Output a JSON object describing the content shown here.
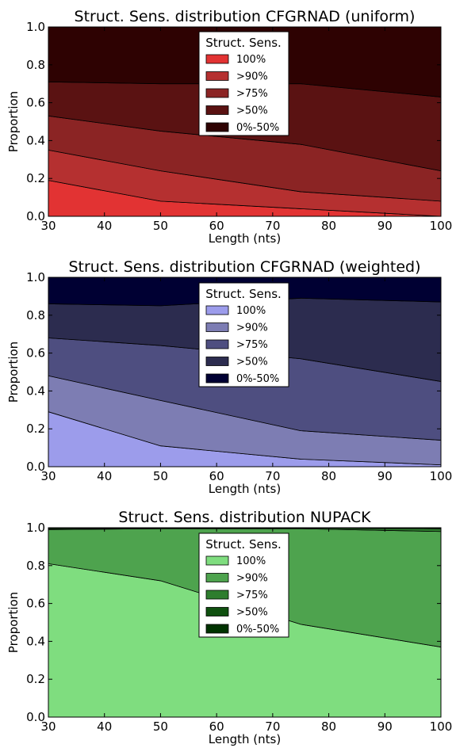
{
  "chart_data": [
    {
      "type": "area",
      "stacked": true,
      "title": "Struct. Sens. distribution CFGRNAD (uniform)",
      "xlabel": "Length (nts)",
      "ylabel": "Proportion",
      "xlim": [
        30,
        100
      ],
      "ylim": [
        0.0,
        1.0
      ],
      "x": [
        30,
        50,
        75,
        100
      ],
      "xticks": [
        "30",
        "40",
        "50",
        "60",
        "70",
        "80",
        "90",
        "100"
      ],
      "yticks": [
        "0.0",
        "0.2",
        "0.4",
        "0.6",
        "0.8",
        "1.0"
      ],
      "grid": false,
      "legend": {
        "title": "Struct. Sens.",
        "position": "top-center"
      },
      "series": [
        {
          "name": "100%",
          "values": [
            0.19,
            0.08,
            0.04,
            0.0
          ],
          "color": "#e23333"
        },
        {
          "name": ">90%",
          "values": [
            0.16,
            0.16,
            0.09,
            0.08
          ],
          "color": "#b53030"
        },
        {
          "name": ">75%",
          "values": [
            0.18,
            0.21,
            0.25,
            0.16
          ],
          "color": "#8b2424"
        },
        {
          "name": ">50%",
          "values": [
            0.18,
            0.25,
            0.32,
            0.39
          ],
          "color": "#5a1212"
        },
        {
          "name": "0%-50%",
          "values": [
            0.29,
            0.3,
            0.3,
            0.37
          ],
          "color": "#2e0202"
        }
      ]
    },
    {
      "type": "area",
      "stacked": true,
      "title": "Struct. Sens. distribution CFGRNAD (weighted)",
      "xlabel": "Length (nts)",
      "ylabel": "Proportion",
      "xlim": [
        30,
        100
      ],
      "ylim": [
        0.0,
        1.0
      ],
      "x": [
        30,
        50,
        75,
        100
      ],
      "xticks": [
        "30",
        "40",
        "50",
        "60",
        "70",
        "80",
        "90",
        "100"
      ],
      "yticks": [
        "0.0",
        "0.2",
        "0.4",
        "0.6",
        "0.8",
        "1.0"
      ],
      "grid": false,
      "legend": {
        "title": "Struct. Sens.",
        "position": "top-center"
      },
      "series": [
        {
          "name": "100%",
          "values": [
            0.29,
            0.11,
            0.04,
            0.01
          ],
          "color": "#9c9ceb"
        },
        {
          "name": ">90%",
          "values": [
            0.19,
            0.24,
            0.15,
            0.13
          ],
          "color": "#7d7db3"
        },
        {
          "name": ">75%",
          "values": [
            0.2,
            0.29,
            0.38,
            0.31
          ],
          "color": "#4e4e80"
        },
        {
          "name": ">50%",
          "values": [
            0.18,
            0.21,
            0.32,
            0.42
          ],
          "color": "#2c2c4f"
        },
        {
          "name": "0%-50%",
          "values": [
            0.14,
            0.15,
            0.11,
            0.13
          ],
          "color": "#000033"
        }
      ]
    },
    {
      "type": "area",
      "stacked": true,
      "title": "Struct. Sens. distribution NUPACK",
      "xlabel": "Length (nts)",
      "ylabel": "Proportion",
      "xlim": [
        30,
        100
      ],
      "ylim": [
        0.0,
        1.0
      ],
      "x": [
        30,
        50,
        75,
        100
      ],
      "xticks": [
        "30",
        "40",
        "50",
        "60",
        "70",
        "80",
        "90",
        "100"
      ],
      "yticks": [
        "0.0",
        "0.2",
        "0.4",
        "0.6",
        "0.8",
        "1.0"
      ],
      "grid": false,
      "legend": {
        "title": "Struct. Sens.",
        "position": "top-center"
      },
      "series": [
        {
          "name": "100%",
          "values": [
            0.81,
            0.72,
            0.49,
            0.37
          ],
          "color": "#7fdd7f"
        },
        {
          "name": ">90%",
          "values": [
            0.18,
            0.275,
            0.505,
            0.61
          ],
          "color": "#4ea34e"
        },
        {
          "name": ">75%",
          "values": [
            0.005,
            0.003,
            0.003,
            0.015
          ],
          "color": "#2e7d2e"
        },
        {
          "name": ">50%",
          "values": [
            0.0,
            0.0,
            0.0,
            0.0
          ],
          "color": "#0f500f"
        },
        {
          "name": "0%-50%",
          "values": [
            0.005,
            0.002,
            0.002,
            0.005
          ],
          "color": "#003300"
        }
      ]
    }
  ]
}
